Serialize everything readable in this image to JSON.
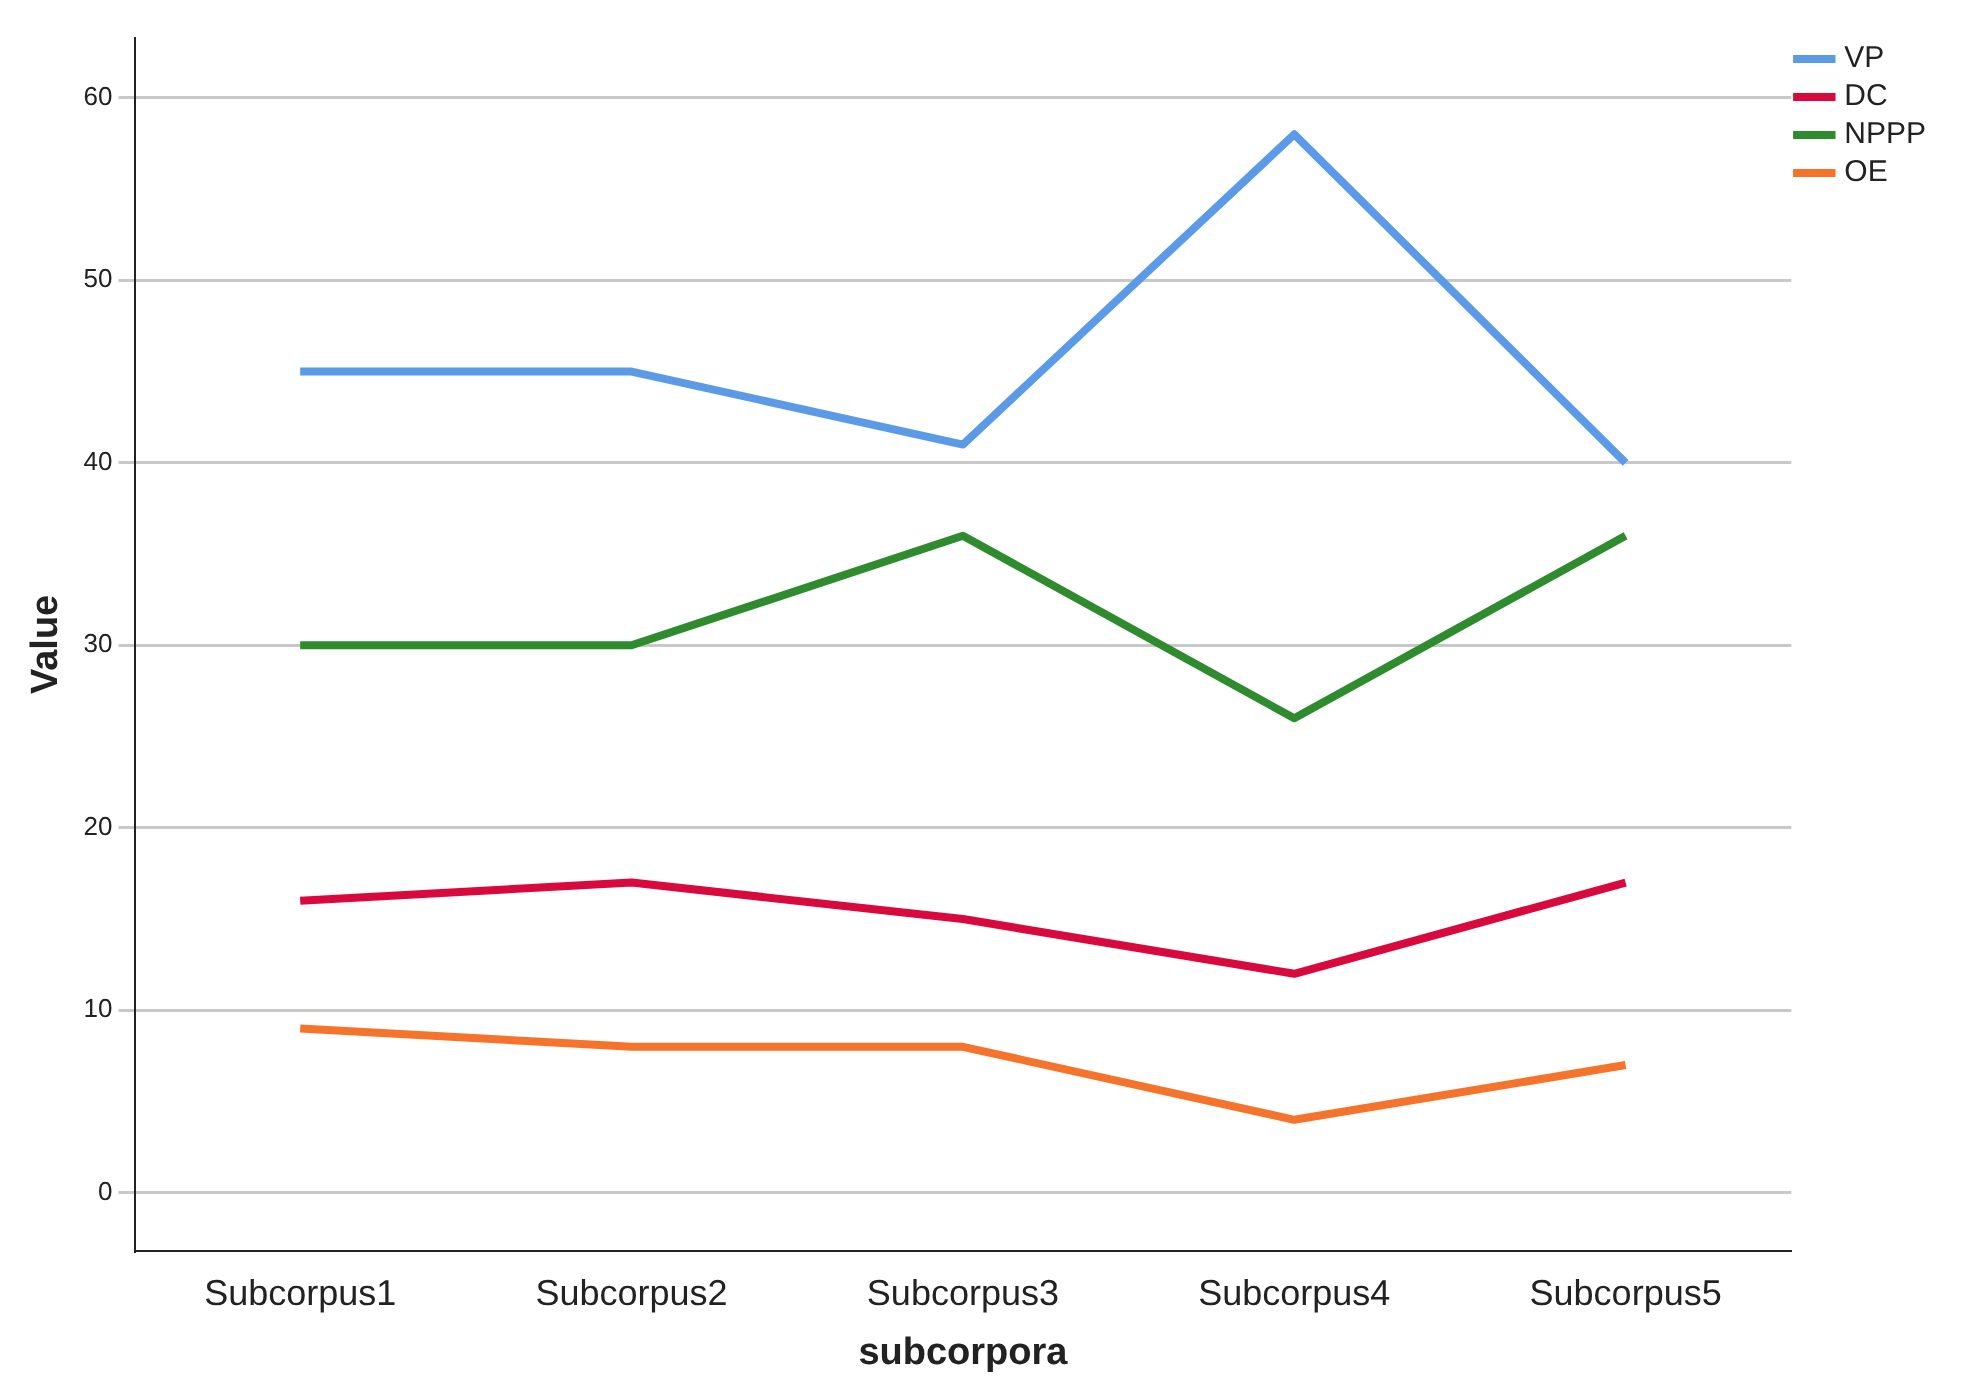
{
  "chart_data": {
    "type": "line",
    "xlabel": "subcorpora",
    "ylabel": "Value",
    "categories": [
      "Subcorpus1",
      "Subcorpus2",
      "Subcorpus3",
      "Subcorpus4",
      "Subcorpus5"
    ],
    "series": [
      {
        "name": "VP",
        "color": "#5b9ae6",
        "values": [
          45,
          45,
          41,
          58,
          40
        ]
      },
      {
        "name": "DC",
        "color": "#d9083d",
        "values": [
          16,
          17,
          15,
          12,
          17
        ]
      },
      {
        "name": "NPPP",
        "color": "#2e8b2e",
        "values": [
          30,
          30,
          36,
          26,
          36
        ]
      },
      {
        "name": "OE",
        "color": "#f5732a",
        "values": [
          9,
          8,
          8,
          4,
          7
        ]
      }
    ],
    "ylim": [
      -3.2,
      63.3
    ],
    "yticks": [
      0,
      10,
      20,
      30,
      40,
      50,
      60
    ],
    "grid": "y",
    "legend": "top right",
    "marker": "none",
    "line_style": "solid"
  }
}
